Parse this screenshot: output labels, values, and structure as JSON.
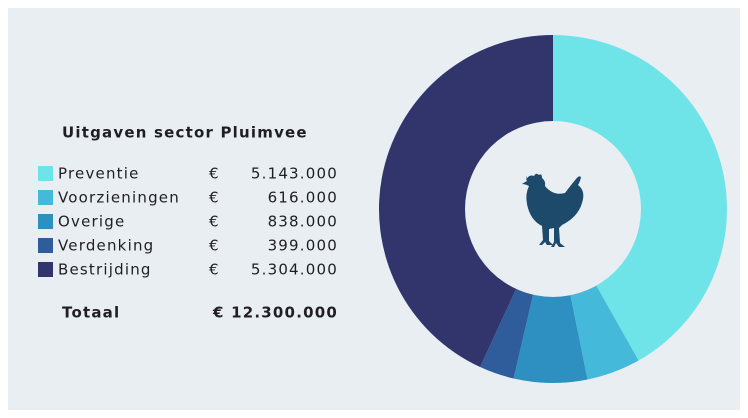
{
  "chart_data": {
    "type": "donut",
    "title": "Uitgaven sector Pluimvee",
    "categories": [
      "Preventie",
      "Voorzieningen",
      "Overige",
      "Verdenking",
      "Bestrijding"
    ],
    "values": [
      5143000,
      616000,
      838000,
      399000,
      5304000
    ],
    "value_labels": [
      "5.143.000",
      "616.000",
      "838.000",
      "399.000",
      "5.304.000"
    ],
    "colors": [
      "#6ee4e9",
      "#45b9d9",
      "#2e8fc1",
      "#2f5d9b",
      "#31356c"
    ],
    "currency": "€",
    "total_name": "Totaal",
    "total": 12300000,
    "total_label": "€ 12.300.000"
  }
}
